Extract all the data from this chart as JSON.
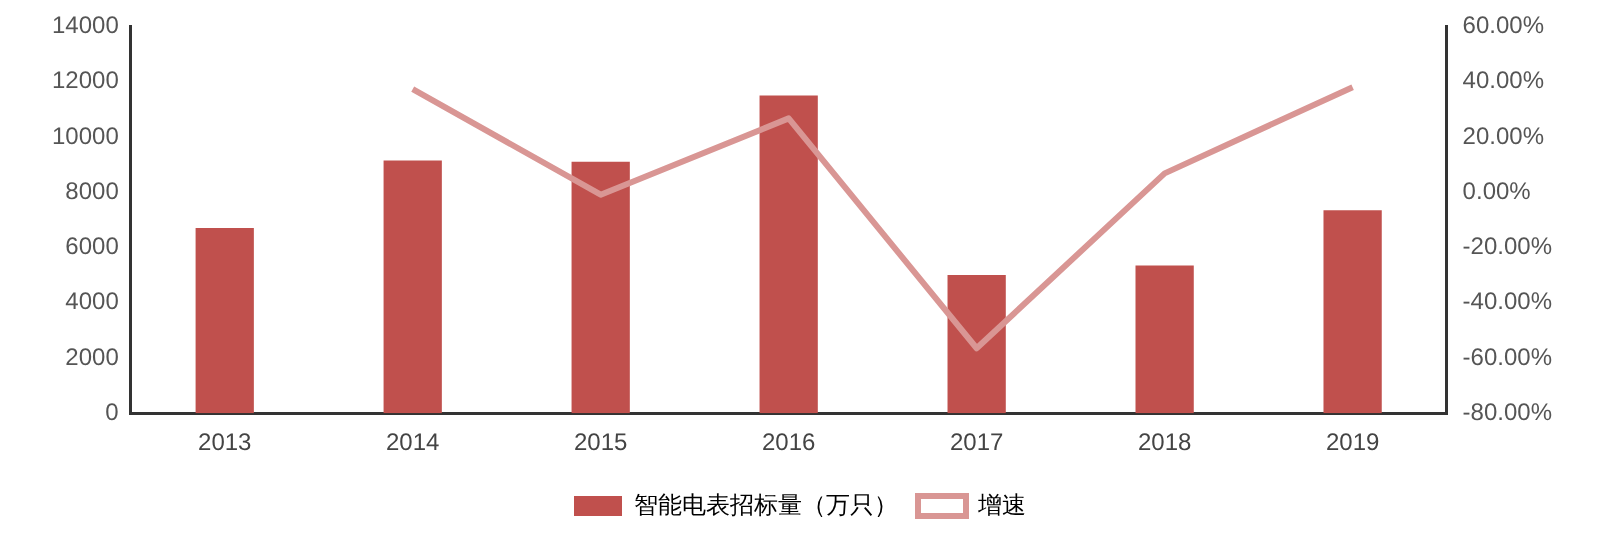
{
  "chart_data": {
    "type": "bar",
    "categories": [
      "2013",
      "2014",
      "2015",
      "2016",
      "2017",
      "2018",
      "2019"
    ],
    "series": [
      {
        "name": "智能电表招标量（万只）",
        "color": "#c0504d",
        "values": [
          6700,
          9150,
          9100,
          11500,
          5000,
          5350,
          7350
        ]
      },
      {
        "name": "增速",
        "type": "line",
        "axis": "y2",
        "color": "#d99694",
        "values": [
          null,
          37.3,
          -0.9,
          26.7,
          -56.5,
          6.8,
          38
        ]
      }
    ],
    "ylim": [
      0,
      14000
    ],
    "yticks": [
      0,
      2000,
      4000,
      6000,
      8000,
      10000,
      12000,
      14000
    ],
    "y2lim": [
      -80,
      60
    ],
    "y2ticks": [
      {
        "value": -80,
        "label": "-80.00%"
      },
      {
        "value": -60,
        "label": "-60.00%"
      },
      {
        "value": -40,
        "label": "-40.00%"
      },
      {
        "value": -20,
        "label": "-20.00%"
      },
      {
        "value": 0,
        "label": "0.00%"
      },
      {
        "value": 20,
        "label": "20.00%"
      },
      {
        "value": 40,
        "label": "40.00%"
      },
      {
        "value": 60,
        "label": "60.00%"
      }
    ],
    "grid": false,
    "legend": "bottom",
    "marker": "none",
    "line_style": "solid"
  }
}
